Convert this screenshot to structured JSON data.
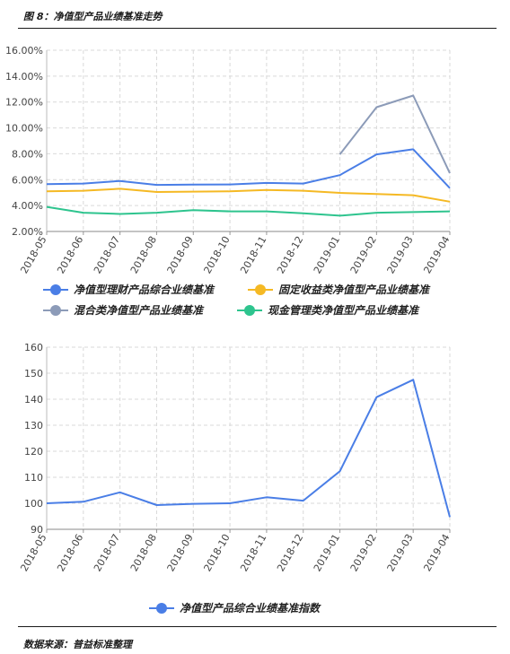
{
  "header": {
    "title": "图 8：净值型产品业绩基准走势"
  },
  "footer": {
    "source": "数据来源：普益标准整理"
  },
  "chart_data": [
    {
      "type": "line",
      "categories": [
        "2018-05",
        "2018-06",
        "2018-07",
        "2018-08",
        "2018-09",
        "2018-10",
        "2018-11",
        "2018-12",
        "2019-01",
        "2019-02",
        "2019-03",
        "2019-04"
      ],
      "y_ticks": [
        "2.00%",
        "4.00%",
        "6.00%",
        "8.00%",
        "10.00%",
        "12.00%",
        "14.00%",
        "16.00%"
      ],
      "ylim": [
        2,
        16
      ],
      "grid": true,
      "legend_position": "bottom",
      "series": [
        {
          "name": "净值型理财产品综合业绩基准",
          "color": "#4a7ee6",
          "values": [
            5.65,
            5.7,
            5.9,
            5.6,
            5.62,
            5.63,
            5.75,
            5.7,
            6.35,
            7.95,
            8.35,
            5.35
          ]
        },
        {
          "name": "固定收益类净值型产品业绩基准",
          "color": "#f5b924",
          "values": [
            5.1,
            5.15,
            5.3,
            5.05,
            5.08,
            5.1,
            5.2,
            5.15,
            4.98,
            4.9,
            4.8,
            4.3
          ]
        },
        {
          "name": "混合类净值型产品业绩基准",
          "color": "#8c9bb8",
          "values": [
            null,
            null,
            null,
            null,
            null,
            null,
            null,
            null,
            7.95,
            11.6,
            12.5,
            6.5
          ]
        },
        {
          "name": "现金管理类净值型产品业绩基准",
          "color": "#2ec48e",
          "values": [
            3.9,
            3.45,
            3.35,
            3.45,
            3.65,
            3.55,
            3.55,
            3.4,
            3.22,
            3.45,
            3.5,
            3.55
          ]
        }
      ]
    },
    {
      "type": "line",
      "categories": [
        "2018-05",
        "2018-06",
        "2018-07",
        "2018-08",
        "2018-09",
        "2018-10",
        "2018-11",
        "2018-12",
        "2019-01",
        "2019-02",
        "2019-03",
        "2019-04"
      ],
      "y_ticks": [
        "90",
        "100",
        "110",
        "120",
        "130",
        "140",
        "150",
        "160"
      ],
      "ylim": [
        90,
        160
      ],
      "grid": true,
      "legend_position": "bottom",
      "series": [
        {
          "name": "净值型产品综合业绩基准指数",
          "color": "#4a7ee6",
          "values": [
            100,
            100.6,
            104.2,
            99.3,
            99.8,
            100,
            102.3,
            101,
            112.3,
            140.8,
            147.5,
            94.7
          ]
        }
      ]
    }
  ]
}
